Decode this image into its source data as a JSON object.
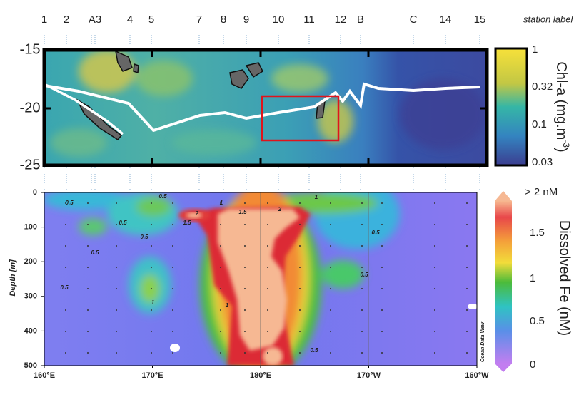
{
  "station_labels": [
    "1",
    "2",
    "A3",
    "4",
    "5",
    "7",
    "8",
    "9",
    "10",
    "11",
    "12",
    "B",
    "C",
    "14",
    "15"
  ],
  "station_label_caption": "station label",
  "map": {
    "yticks": [
      -15,
      -20,
      -25
    ]
  },
  "chl_colorbar": {
    "title": "Chl-a (mg.m",
    "title_sup": "-3",
    "title_end": ")",
    "ticks": [
      1,
      0.32,
      0.1,
      0.03
    ]
  },
  "section": {
    "ylabel": "Depth [m]",
    "yticks": [
      0,
      100,
      200,
      300,
      400,
      500
    ],
    "xticks": [
      "160°E",
      "170°E",
      "180°E",
      "170°W",
      "160°W"
    ],
    "watermark": "Ocean Data View",
    "contour_labels": [
      0.5,
      0.5,
      1,
      1.5,
      2,
      1,
      0.5,
      0.5,
      1.5,
      2,
      0.5,
      0.5,
      1,
      1,
      0.5,
      0.5,
      0.5
    ]
  },
  "fe_colorbar": {
    "title": "Dissolved Fe (nM)",
    "ticks": [
      "> 2 nM",
      1.5,
      1,
      0.5,
      0
    ]
  }
}
